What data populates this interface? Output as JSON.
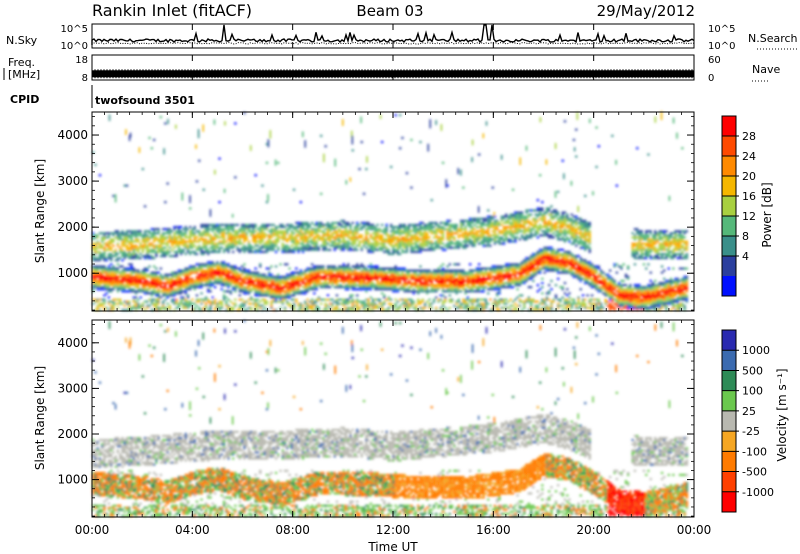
{
  "header": {
    "station": "Rankin Inlet (fitACF)",
    "beam": "Beam 03",
    "date": "29/May/2012"
  },
  "chart_data": [
    {
      "type": "line",
      "panel": "noise",
      "left_label": "N.Sky",
      "right_label": "N.Search",
      "left_ticks": [
        "10^5",
        "10^0"
      ],
      "right_ticks": [
        "10^5",
        "10^0"
      ],
      "style": "log"
    },
    {
      "type": "line",
      "panel": "freq-nave",
      "left_label_lines": [
        "Freq.",
        "[MHz]"
      ],
      "right_label": "Nave",
      "left_ticks": [
        "18",
        "8"
      ],
      "right_ticks": [
        "60",
        "0"
      ],
      "freq_mhz": 10.5,
      "freq_range": [
        8,
        18
      ]
    },
    {
      "type": "table",
      "panel": "cpid",
      "label": "CPID",
      "value": "twofsound 3501"
    },
    {
      "type": "heatmap",
      "panel": "power",
      "ylabel": "Slant Range [km]",
      "ylim": [
        180,
        4500
      ],
      "y_ticks": [
        "1000",
        "2000",
        "3000",
        "4000"
      ],
      "colorbar_label": "Power [dB]",
      "colorbar_ticks": [
        "28",
        "24",
        "20",
        "16",
        "12",
        "8",
        "4"
      ],
      "colorbar_colors": [
        "#ff0000",
        "#ff4a00",
        "#ff8a00",
        "#f5b700",
        "#a8d040",
        "#55b87a",
        "#3a8f8a",
        "#2b3f9e",
        "#0010ff"
      ]
    },
    {
      "type": "heatmap",
      "panel": "velocity",
      "ylabel": "Slant Range [km]",
      "ylim": [
        180,
        4500
      ],
      "y_ticks": [
        "1000",
        "2000",
        "3000",
        "4000"
      ],
      "colorbar_label": "Velocity [m s⁻¹]",
      "colorbar_ticks": [
        "1000",
        "500",
        "100",
        "25",
        "-25",
        "-100",
        "-500",
        "-1000"
      ],
      "colorbar_colors": [
        "#2a2ab0",
        "#3b6bb0",
        "#2e8b57",
        "#6bc84e",
        "#b8b8b0",
        "#f5a623",
        "#ff7b00",
        "#ff4000",
        "#ff0000"
      ]
    }
  ],
  "xaxis": {
    "label": "Time UT",
    "ticks": [
      "00:00",
      "04:00",
      "08:00",
      "12:00",
      "16:00",
      "20:00",
      "00:00"
    ],
    "range_hours": [
      0,
      24
    ]
  }
}
